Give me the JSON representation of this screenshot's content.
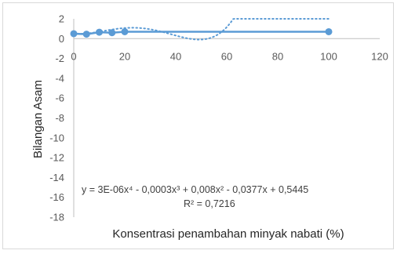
{
  "chart_data": {
    "type": "scatter",
    "xlabel": "Konsentrasi penambahan minyak nabati (%)",
    "ylabel": "Bilangan Asam",
    "xlim": [
      0,
      120
    ],
    "ylim": [
      -18,
      2
    ],
    "x_ticks": [
      "0",
      "20",
      "40",
      "60",
      "80",
      "100",
      "120"
    ],
    "y_ticks": [
      "2",
      "0",
      "-2",
      "-4",
      "-6",
      "-8",
      "-10",
      "-12",
      "-14",
      "-16",
      "-18"
    ],
    "grid": false,
    "series": [
      {
        "x": [
          0,
          5,
          10,
          15,
          20,
          100
        ],
        "y": [
          0.5,
          0.45,
          0.65,
          0.6,
          0.7,
          0.7
        ],
        "color": "#5b9bd5",
        "style": "solid line with markers"
      }
    ],
    "trendline": {
      "kind": "polynomial, order 4",
      "style": "dotted",
      "color": "#5b9bd5",
      "coefficients": [
        3e-06,
        -0.0003,
        0.008,
        -0.0377,
        0.5445
      ],
      "x_range": [
        0,
        100
      ],
      "equation_label": "y = 3E-06x⁴ - 0,0003x³ + 0,008x² - 0,0377x + 0,5445",
      "r2_label": "R² = 0,7216"
    }
  }
}
